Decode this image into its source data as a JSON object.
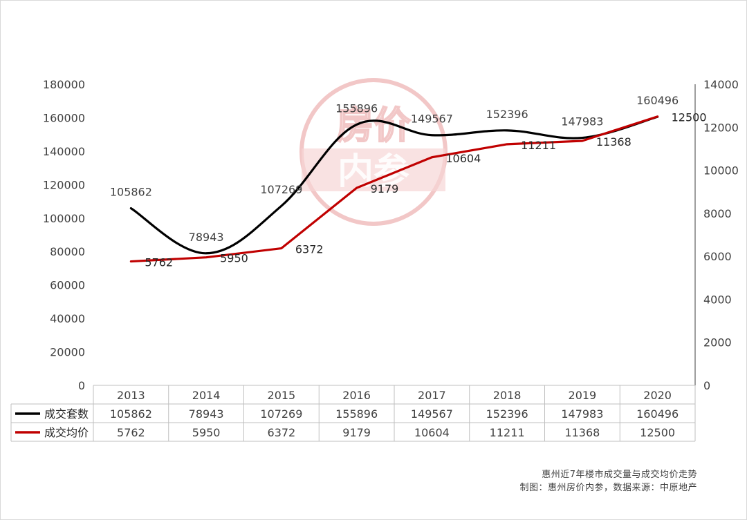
{
  "chart_data": {
    "type": "line",
    "categories": [
      "2013",
      "2014",
      "2015",
      "2016",
      "2017",
      "2018",
      "2019",
      "2020"
    ],
    "series": [
      {
        "name": "成交套数",
        "axis": "left",
        "color": "#000000",
        "smooth": true,
        "values": [
          105862,
          78943,
          107269,
          155896,
          149567,
          152396,
          147983,
          160496
        ]
      },
      {
        "name": "成交均价",
        "axis": "right",
        "color": "#c00000",
        "smooth": false,
        "values": [
          5762,
          5950,
          6372,
          9179,
          10604,
          11211,
          11368,
          12500
        ]
      }
    ],
    "y_left": {
      "min": 0,
      "max": 180000,
      "step": 20000
    },
    "y_right": {
      "min": 0,
      "max": 14000,
      "step": 2000
    },
    "data_table": true,
    "legend": "data table"
  },
  "watermark": {
    "line1": "房价",
    "line2": "内参"
  },
  "footer": {
    "title": "惠州近7年楼市成交量与成交均价走势",
    "credit": "制图：惠州房价内参，数据来源：中原地产"
  }
}
